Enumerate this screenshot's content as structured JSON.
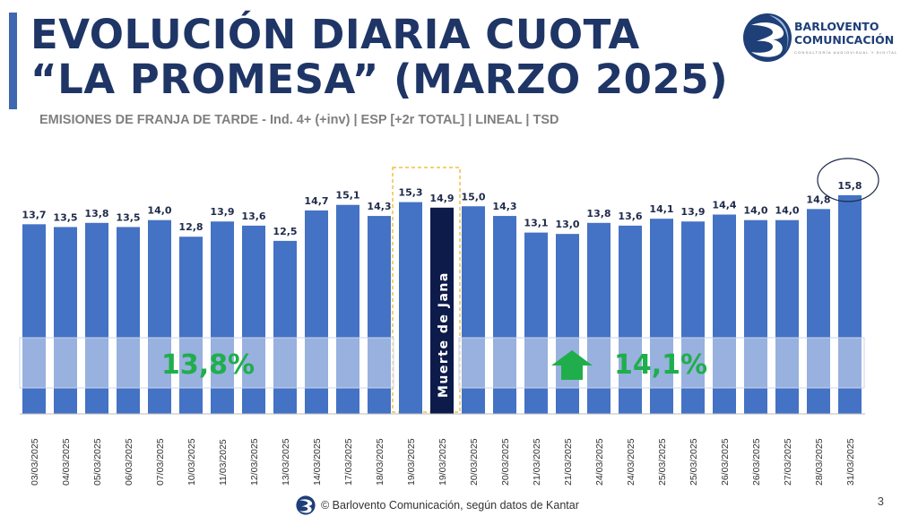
{
  "header": {
    "title_line1": "EVOLUCIÓN DIARIA CUOTA",
    "title_line2": "“LA PROMESA” (MARZO 2025)",
    "subtitle": "EMISIONES DE FRANJA DE TARDE - Ind. 4+  (+inv) | ESP [+2r TOTAL] | LINEAL | TSD"
  },
  "logo": {
    "name_line1": "BARLOVENTO",
    "name_line2": "COMUNICACIÓN",
    "tagline": "CONSULTORÍA AUDIOVISUAL Y DIGITAL"
  },
  "chart_data": {
    "type": "bar",
    "title": "",
    "xlabel": "",
    "ylabel": "",
    "ylim": [
      0,
      16
    ],
    "categories": [
      "03/03/2025",
      "04/03/2025",
      "05/03/2025",
      "06/03/2025",
      "07/03/2025",
      "10/03/2025",
      "11/03/2025",
      "12/03/2025",
      "13/03/2025",
      "14/03/2025",
      "17/03/2025",
      "18/03/2025",
      "19/03/2025",
      "19/03/2025",
      "20/03/2025",
      "20/03/2025",
      "21/03/2025",
      "21/03/2025",
      "24/03/2025",
      "24/03/2025",
      "25/03/2025",
      "25/03/2025",
      "26/03/2025",
      "26/03/2025",
      "27/03/2025",
      "28/03/2025",
      "31/03/2025"
    ],
    "values": [
      13.7,
      13.5,
      13.8,
      13.5,
      14.0,
      12.8,
      13.9,
      13.6,
      12.5,
      14.7,
      15.1,
      14.3,
      15.3,
      14.9,
      15.0,
      14.3,
      13.1,
      13.0,
      13.8,
      13.6,
      14.1,
      13.9,
      14.4,
      14.0,
      14.0,
      14.8,
      15.8
    ],
    "value_labels": [
      "13,7",
      "13,5",
      "13,8",
      "13,5",
      "14,0",
      "12,8",
      "13,9",
      "13,6",
      "12,5",
      "14,7",
      "15,1",
      "14,3",
      "15,3",
      "14,9",
      "15,0",
      "14,3",
      "13,1",
      "13,0",
      "13,8",
      "13,6",
      "14,1",
      "13,9",
      "14,4",
      "14,0",
      "14,0",
      "14,8",
      "15,8"
    ],
    "highlighted_index": 13,
    "highlight_label": "Muerte de Jana",
    "circled_index": 26,
    "averages": [
      {
        "label": "13,8%",
        "value": 13.8,
        "from_index": 0,
        "to_index": 11
      },
      {
        "label": "14,1%",
        "value": 14.1,
        "from_index": 14,
        "to_index": 26,
        "trend": "up"
      }
    ],
    "colors": {
      "bar": "#4472c4",
      "highlight_bar": "#0d1b4a",
      "average_text": "#1fae4b",
      "dashed_box": "#f0c040"
    }
  },
  "footer": {
    "source": "© Barlovento Comunicación, según datos de Kantar",
    "page_number": "3"
  }
}
